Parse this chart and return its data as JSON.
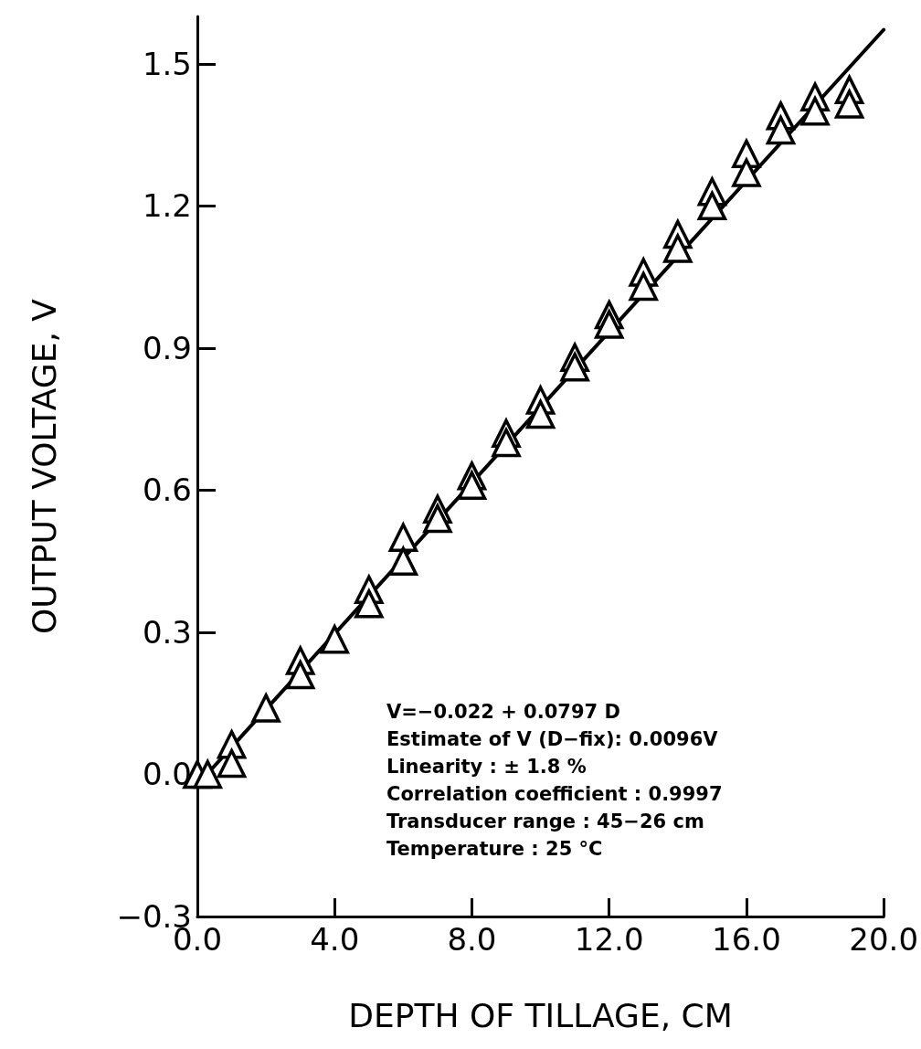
{
  "chart_data": {
    "type": "scatter",
    "xlabel": "DEPTH OF TILLAGE, CM",
    "ylabel": "OUTPUT VOLTAGE, V",
    "xlim": [
      0,
      20
    ],
    "ylim": [
      -0.3,
      1.6
    ],
    "xticks": [
      {
        "value": 0,
        "label": "0.0"
      },
      {
        "value": 4,
        "label": "4.0"
      },
      {
        "value": 8,
        "label": "8.0"
      },
      {
        "value": 12,
        "label": "12.0"
      },
      {
        "value": 16,
        "label": "16.0"
      },
      {
        "value": 20,
        "label": "20.0"
      }
    ],
    "yticks": [
      {
        "value": -0.3,
        "label": "−0.3"
      },
      {
        "value": 0,
        "label": "0.0"
      },
      {
        "value": 0.3,
        "label": "0.3"
      },
      {
        "value": 0.6,
        "label": "0.6"
      },
      {
        "value": 0.9,
        "label": "0.9"
      },
      {
        "value": 1.2,
        "label": "1.2"
      },
      {
        "value": 1.5,
        "label": "1.5"
      }
    ],
    "grid": false,
    "series": [
      {
        "marker": "triangle",
        "color": "#000000",
        "x": [
          0,
          0.3,
          1,
          1,
          2,
          3,
          3,
          4,
          5,
          5,
          6,
          6,
          7,
          7,
          8,
          8,
          9,
          9,
          10,
          10,
          11,
          11,
          12,
          12,
          13,
          13,
          14,
          14,
          15,
          15,
          16,
          16,
          17,
          17,
          18,
          18,
          19,
          19
        ],
        "values": [
          0.0,
          0.0,
          0.063,
          0.023,
          0.14,
          0.24,
          0.21,
          0.285,
          0.39,
          0.36,
          0.5,
          0.45,
          0.56,
          0.54,
          0.63,
          0.61,
          0.72,
          0.7,
          0.79,
          0.76,
          0.88,
          0.86,
          0.97,
          0.95,
          1.06,
          1.03,
          1.14,
          1.11,
          1.23,
          1.2,
          1.31,
          1.27,
          1.39,
          1.36,
          1.43,
          1.4,
          1.445,
          1.415
        ]
      },
      {
        "type": "line",
        "marker": "none",
        "color": "#000000",
        "x": [
          0,
          20
        ],
        "values": [
          -0.022,
          1.572
        ]
      }
    ],
    "annotations": [
      "V=−0.022 + 0.0797 D",
      "Estimate of V (D−fix): 0.0096V",
      "Linearity : ± 1.8 %",
      "Correlation coefficient : 0.9997",
      "Transducer range : 45−26 cm",
      "Temperature : 25 °C"
    ]
  }
}
